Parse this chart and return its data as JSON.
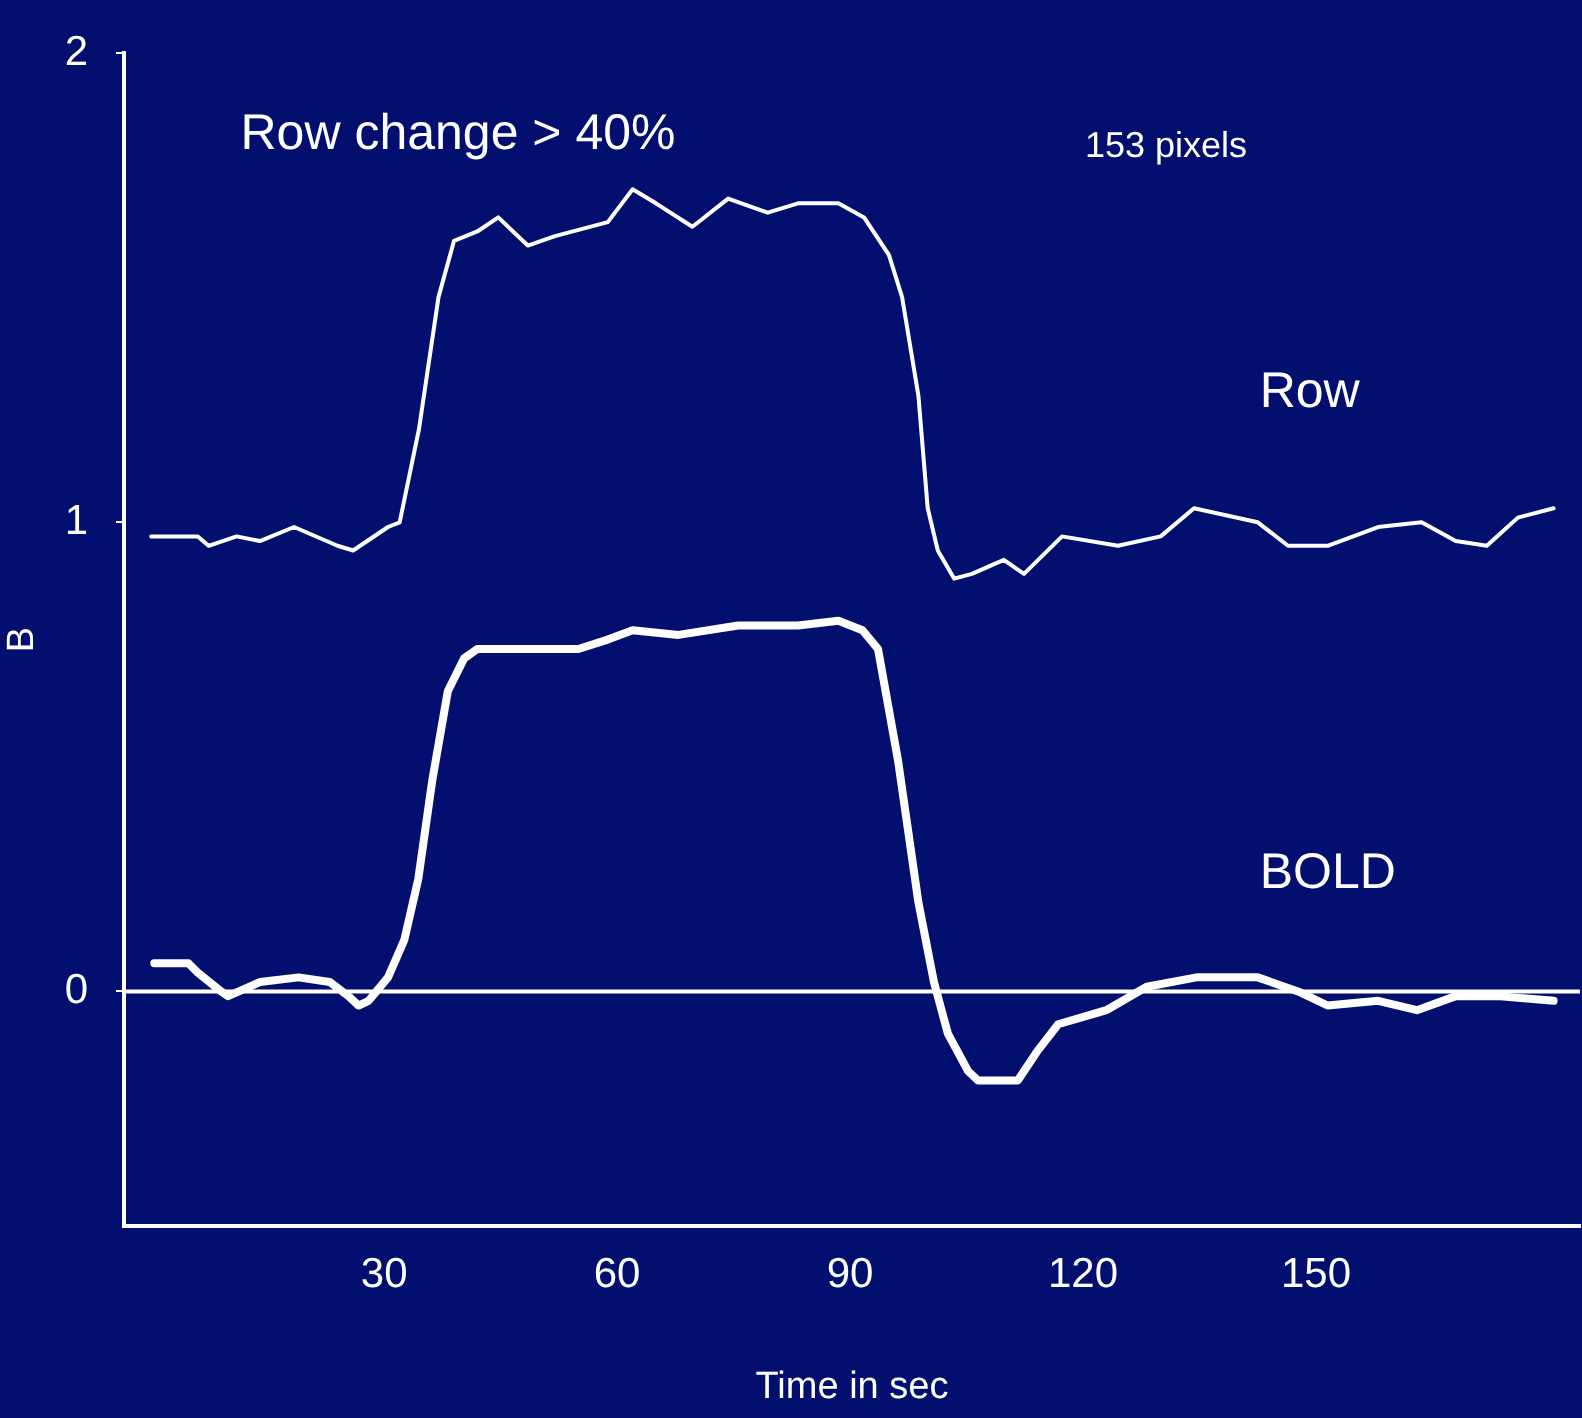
{
  "chart_data": {
    "type": "line",
    "xlabel": "Time in sec",
    "ylabel": "B",
    "annotations": [
      "Row change > 40%",
      "153 pixels"
    ],
    "xlim": [
      -3.5,
      184
    ],
    "xticks": [
      30,
      60,
      90,
      120,
      150
    ],
    "ylim": [
      -0.5,
      2
    ],
    "yticks": [
      0,
      1,
      2
    ],
    "grid": false,
    "legend": false,
    "marker": "none",
    "line_style": "solid",
    "ref_lines": [
      {
        "axis": "y",
        "value": 0,
        "color": "#ffffff"
      }
    ],
    "series": [
      {
        "name": "Row",
        "color": "#ffffff",
        "x": [
          0,
          6,
          7.4,
          11,
          14,
          18.4,
          24,
          26,
          30.5,
          32,
          34.5,
          37,
          39,
          42,
          44.7,
          48.5,
          52,
          58.8,
          62,
          65,
          69.7,
          74.3,
          79.4,
          83.3,
          88.5,
          91.8,
          95,
          96.7,
          98.8,
          100,
          101.3,
          103.4,
          105.7,
          109.8,
          112.4,
          117.3,
          124.5,
          130,
          134.3,
          142.5,
          146.4,
          151.5,
          158,
          163.6,
          168,
          172,
          176,
          180.6
        ],
        "values": [
          0.97,
          0.97,
          0.95,
          0.97,
          0.96,
          0.99,
          0.95,
          0.94,
          0.99,
          1.0,
          1.2,
          1.48,
          1.6,
          1.62,
          1.65,
          1.59,
          1.61,
          1.64,
          1.71,
          1.68,
          1.63,
          1.69,
          1.66,
          1.68,
          1.68,
          1.65,
          1.57,
          1.48,
          1.27,
          1.03,
          0.94,
          0.88,
          0.89,
          0.92,
          0.89,
          0.97,
          0.95,
          0.97,
          1.03,
          1.0,
          0.95,
          0.95,
          0.99,
          1.0,
          0.96,
          0.95,
          1.01,
          1.03
        ]
      },
      {
        "name": "BOLD",
        "color": "#ffffff",
        "x": [
          0.4,
          4.8,
          6,
          9,
          9.9,
          14,
          19,
          23,
          25.4,
          26.7,
          28,
          30.5,
          32.6,
          34.4,
          36.2,
          38.2,
          40.3,
          42,
          55,
          58.8,
          62,
          67.9,
          75.6,
          83.3,
          88.5,
          91.6,
          93.6,
          96.2,
          98.8,
          100.8,
          102.6,
          105.2,
          106.5,
          111.6,
          114,
          116.8,
          123,
          128.2,
          134.6,
          142.5,
          147.7,
          151.5,
          158,
          163,
          168,
          173.4,
          180.6
        ],
        "values": [
          0.06,
          0.06,
          0.04,
          0.0,
          -0.01,
          0.02,
          0.03,
          0.02,
          -0.01,
          -0.03,
          -0.02,
          0.03,
          0.11,
          0.24,
          0.45,
          0.64,
          0.71,
          0.73,
          0.73,
          0.75,
          0.77,
          0.76,
          0.78,
          0.78,
          0.79,
          0.77,
          0.73,
          0.49,
          0.19,
          0.02,
          -0.09,
          -0.17,
          -0.19,
          -0.19,
          -0.13,
          -0.07,
          -0.04,
          0.01,
          0.03,
          0.03,
          0.0,
          -0.03,
          -0.02,
          -0.04,
          -0.01,
          -0.01,
          -0.02
        ]
      }
    ]
  }
}
